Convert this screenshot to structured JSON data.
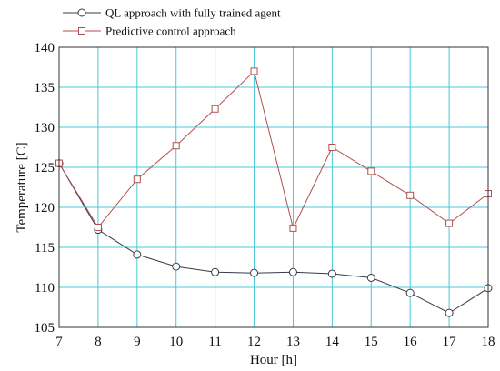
{
  "chart_data": {
    "type": "line",
    "xlabel": "Hour [h]",
    "ylabel": "Temperature [C]",
    "xlim": [
      7,
      18
    ],
    "ylim": [
      105,
      140
    ],
    "x_ticks": [
      "7",
      "8",
      "9",
      "10",
      "11",
      "12",
      "13",
      "14",
      "15",
      "16",
      "17",
      "18"
    ],
    "y_ticks": [
      "105",
      "110",
      "115",
      "120",
      "125",
      "130",
      "135",
      "140"
    ],
    "grid": true,
    "legend_position": "top-left",
    "x": [
      7,
      8,
      9,
      10,
      11,
      12,
      13,
      14,
      15,
      16,
      17,
      18
    ],
    "series": [
      {
        "name": "QL approach with fully trained agent",
        "marker": "circle",
        "color": "#3a3a4a",
        "values": [
          125.5,
          117.2,
          114.1,
          112.6,
          111.9,
          111.8,
          111.9,
          111.7,
          111.2,
          109.3,
          106.8,
          109.9
        ]
      },
      {
        "name": "Predictive control approach",
        "marker": "square",
        "color": "#b05050",
        "values": [
          125.5,
          117.5,
          123.5,
          127.7,
          132.3,
          137.0,
          117.4,
          127.5,
          124.5,
          121.5,
          118.0,
          121.7
        ]
      }
    ],
    "colors": {
      "grid": "#48c8d8",
      "axis": "#333333"
    }
  }
}
